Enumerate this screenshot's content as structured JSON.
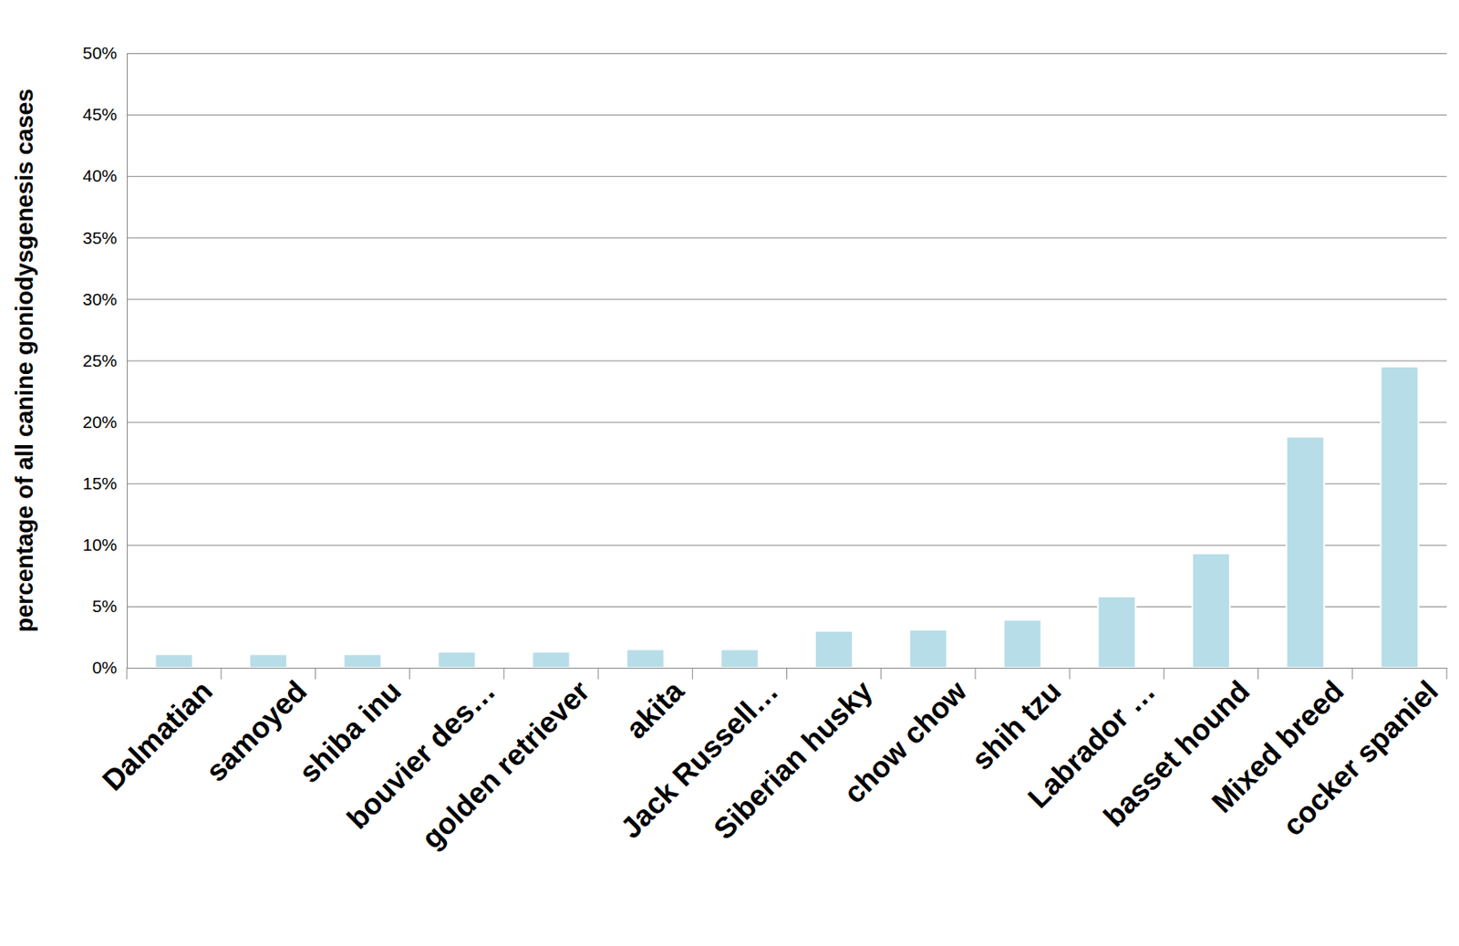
{
  "chart_data": {
    "type": "bar",
    "y_label": "percentage of all canine goniodysgenesis cases",
    "categories": [
      "Dalmatian",
      "samoyed",
      "shiba inu",
      "bouvier des…",
      "golden retriever",
      "akita",
      "Jack Russell…",
      "Siberian husky",
      "chow chow",
      "shih tzu",
      "Labrador …",
      "basset hound",
      "Mixed breed",
      "cocker spaniel"
    ],
    "values": [
      1.1,
      1.1,
      1.1,
      1.3,
      1.3,
      1.5,
      1.5,
      3.0,
      3.1,
      3.9,
      5.8,
      9.3,
      18.8,
      24.5
    ],
    "color": "#b7dde8",
    "ylim": [
      0,
      50
    ],
    "yticks": [
      {
        "value": 0,
        "label": "0%"
      },
      {
        "value": 5,
        "label": "5%"
      },
      {
        "value": 10,
        "label": "10%"
      },
      {
        "value": 15,
        "label": "15%"
      },
      {
        "value": 20,
        "label": "20%"
      },
      {
        "value": 25,
        "label": "25%"
      },
      {
        "value": 30,
        "label": "30%"
      },
      {
        "value": 35,
        "label": "35%"
      },
      {
        "value": 40,
        "label": "40%"
      },
      {
        "value": 45,
        "label": "45%"
      },
      {
        "value": 50,
        "label": "50%"
      }
    ],
    "grid": true
  }
}
